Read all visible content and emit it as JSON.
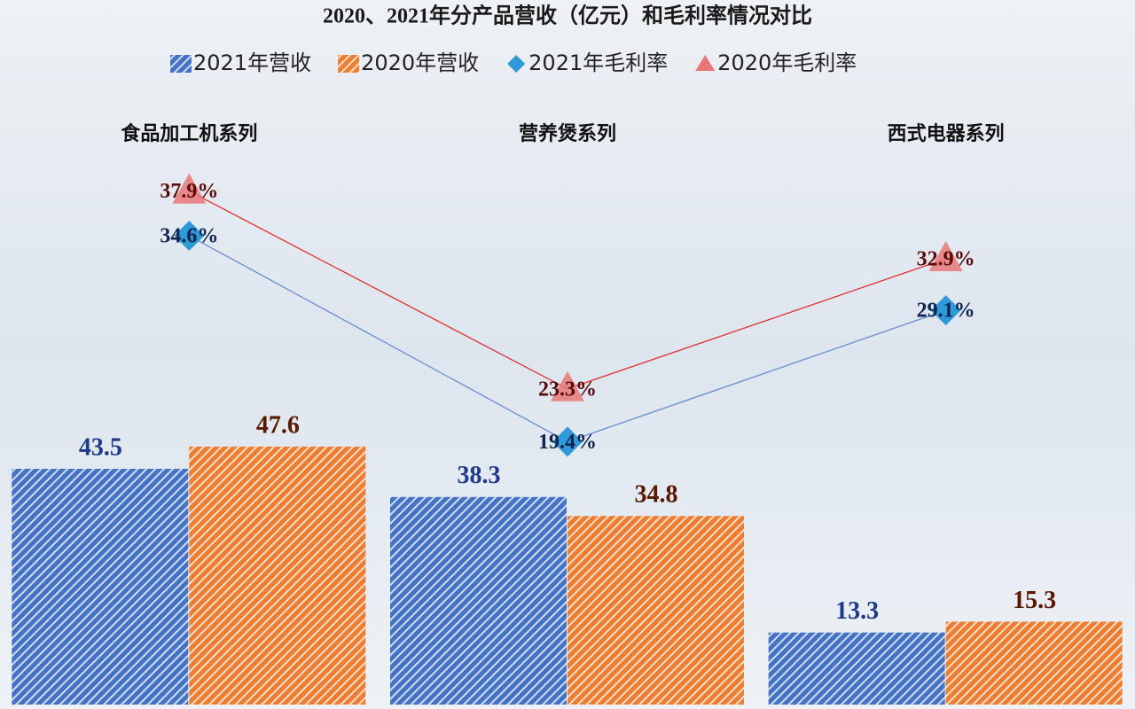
{
  "chart_data": {
    "type": "bar",
    "title": "2020、2021年分产品营收（亿元）和毛利率情况对比",
    "categories": [
      "食品加工机系列",
      "营养煲系列",
      "西式电器系列"
    ],
    "ylim": [
      0,
      130
    ],
    "y2lim": [
      0,
      52
    ],
    "series": [
      {
        "name": "2021年营收",
        "type": "bar",
        "color": "#4472c4",
        "label_color": "#1f3a8a",
        "values": [
          43.5,
          38.3,
          13.3
        ]
      },
      {
        "name": "2020年营收",
        "type": "bar",
        "color": "#ed7d31",
        "label_color": "#5a1800",
        "values": [
          47.6,
          34.8,
          15.3
        ]
      },
      {
        "name": "2021年毛利率",
        "type": "line",
        "axis": "y2",
        "color": "#2e9ad8",
        "line_color": "#6a8ed0",
        "label_color": "#0f2350",
        "values": [
          34.6,
          19.4,
          29.1
        ],
        "value_labels": [
          "34.6%",
          "19.4%",
          "29.1%"
        ]
      },
      {
        "name": "2020年毛利率",
        "type": "line",
        "axis": "y2",
        "color": "#e87878",
        "line_color": "#e03030",
        "label_color": "#5a0a0a",
        "values": [
          37.9,
          23.3,
          32.9
        ],
        "value_labels": [
          "37.9%",
          "23.3%",
          "32.9%"
        ]
      }
    ]
  }
}
